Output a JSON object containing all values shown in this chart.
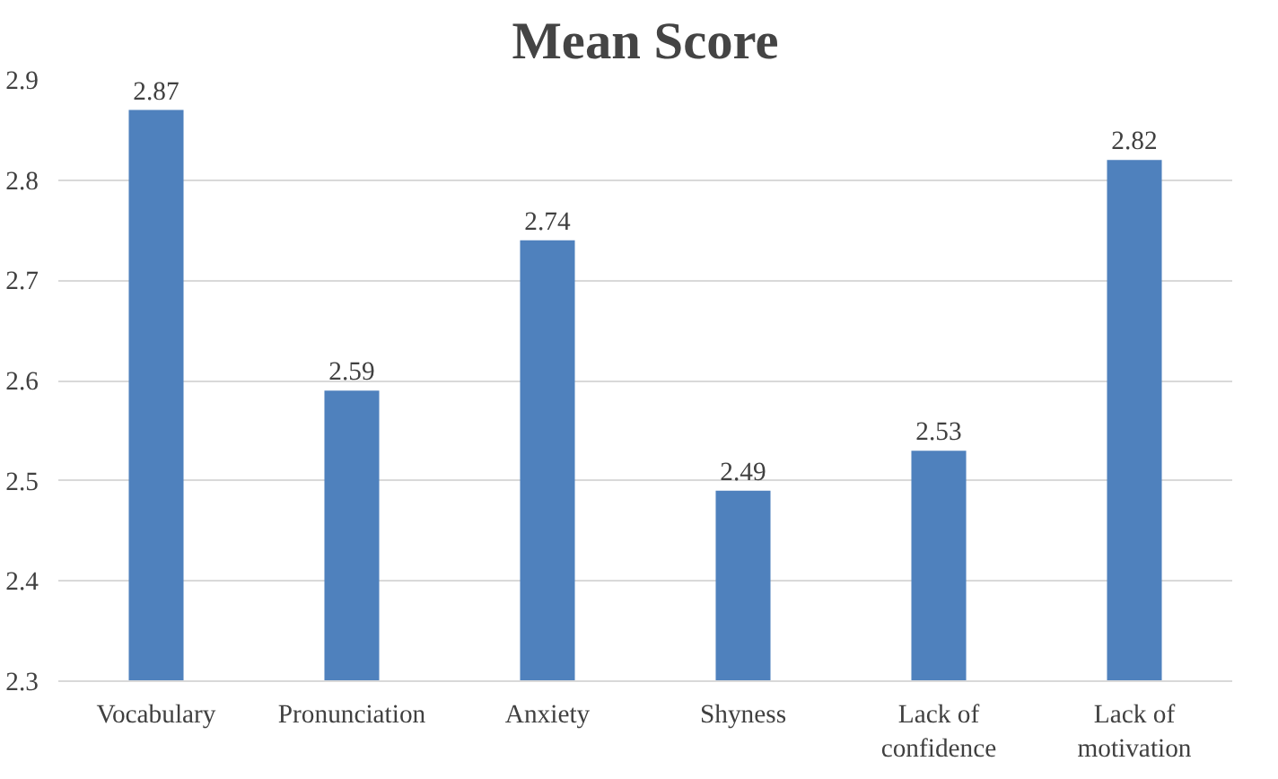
{
  "chart_data": {
    "type": "bar",
    "title": "Mean Score",
    "categories": [
      "Vocabulary",
      "Pronunciation",
      "Anxiety",
      "Shyness",
      "Lack of\nconfidence",
      "Lack of\nmotivation"
    ],
    "values": [
      2.87,
      2.59,
      2.74,
      2.49,
      2.53,
      2.82
    ],
    "color": "#4f81bd",
    "ylim": [
      2.3,
      2.9
    ],
    "yticks": [
      2.3,
      2.4,
      2.5,
      2.6,
      2.7,
      2.8,
      2.9
    ],
    "grid": "y",
    "data_labels": true
  }
}
